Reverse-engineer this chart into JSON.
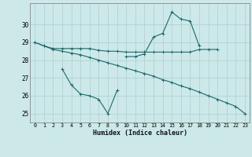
{
  "xlabel": "Humidex (Indice chaleur)",
  "background_color": "#cce8e8",
  "grid_color": "#aacfcf",
  "line_color": "#1a6b6b",
  "x_values": [
    0,
    1,
    2,
    3,
    4,
    5,
    6,
    7,
    8,
    9,
    10,
    11,
    12,
    13,
    14,
    15,
    16,
    17,
    18,
    19,
    20,
    21,
    22,
    23
  ],
  "series1": [
    29.0,
    28.8,
    28.65,
    28.65,
    28.65,
    28.65,
    28.65,
    28.55,
    28.5,
    28.5,
    28.45,
    28.45,
    28.45,
    28.45,
    28.45,
    28.45,
    28.45,
    28.45,
    28.6,
    28.6,
    28.6,
    null,
    null,
    null
  ],
  "series2": [
    29.0,
    28.8,
    28.6,
    28.5,
    28.4,
    28.3,
    28.15,
    28.0,
    27.85,
    27.7,
    27.55,
    27.4,
    27.25,
    27.1,
    26.9,
    26.75,
    26.55,
    26.4,
    26.2,
    26.0,
    25.8,
    25.6,
    25.4,
    25.0
  ],
  "series3": [
    null,
    null,
    null,
    27.5,
    26.6,
    26.1,
    26.0,
    25.8,
    25.0,
    26.3,
    null,
    null,
    null,
    null,
    null,
    null,
    null,
    null,
    null,
    null,
    null,
    null,
    null,
    null
  ],
  "series4": [
    null,
    null,
    null,
    null,
    null,
    null,
    null,
    null,
    null,
    null,
    28.2,
    28.2,
    28.35,
    29.3,
    29.5,
    30.7,
    30.3,
    30.2,
    28.8,
    null,
    null,
    null,
    null,
    null
  ],
  "ylim": [
    24.5,
    31.2
  ],
  "yticks": [
    25,
    26,
    27,
    28,
    29,
    30
  ]
}
